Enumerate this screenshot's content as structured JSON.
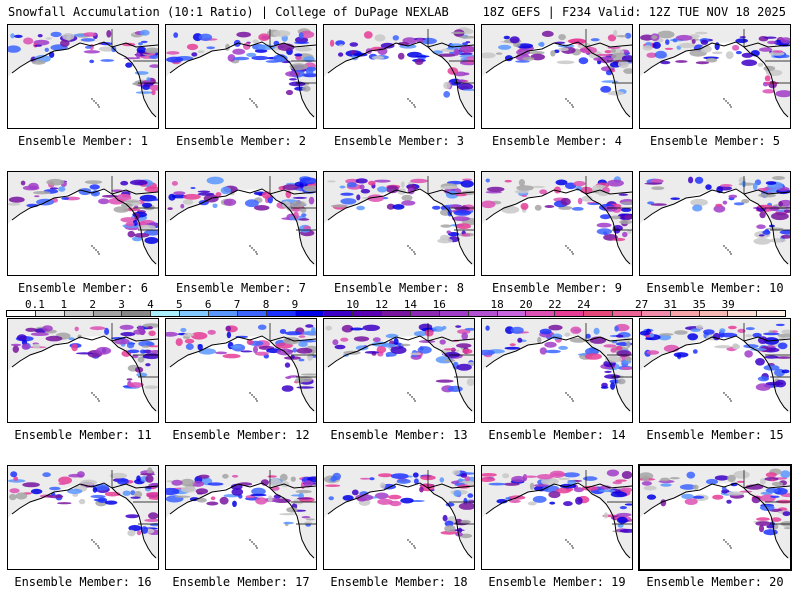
{
  "header": {
    "left": "Snowfall Accumulation (10:1 Ratio) | College of DuPage NEXLAB",
    "right": "18Z GEFS | F234 Valid: 12Z TUE NOV 18 2025"
  },
  "caption_prefix": "Ensemble Member: ",
  "members": [
    {
      "label": "Ensemble Member: 1"
    },
    {
      "label": "Ensemble Member: 2"
    },
    {
      "label": "Ensemble Member: 3"
    },
    {
      "label": "Ensemble Member: 4"
    },
    {
      "label": "Ensemble Member: 5"
    },
    {
      "label": "Ensemble Member: 6"
    },
    {
      "label": "Ensemble Member: 7"
    },
    {
      "label": "Ensemble Member: 8"
    },
    {
      "label": "Ensemble Member: 9"
    },
    {
      "label": "Ensemble Member: 10"
    },
    {
      "label": "Ensemble Member: 11"
    },
    {
      "label": "Ensemble Member: 12"
    },
    {
      "label": "Ensemble Member: 13"
    },
    {
      "label": "Ensemble Member: 14"
    },
    {
      "label": "Ensemble Member: 15"
    },
    {
      "label": "Ensemble Member: 16"
    },
    {
      "label": "Ensemble Member: 17"
    },
    {
      "label": "Ensemble Member: 18"
    },
    {
      "label": "Ensemble Member: 19"
    },
    {
      "label": "Ensemble Member: 20"
    }
  ],
  "legend": {
    "ticks": [
      "0.1",
      "1",
      "2",
      "3",
      "4",
      "5",
      "6",
      "7",
      "8",
      "9",
      "10",
      "12",
      "14",
      "16",
      "18",
      "20",
      "22",
      "24",
      "27",
      "31",
      "35",
      "39"
    ],
    "colors": [
      "#ffffff",
      "#e6e6e6",
      "#c8c8c8",
      "#a5a5a5",
      "#878787",
      "#aaf0ff",
      "#80c8ff",
      "#5a96ff",
      "#3c64ff",
      "#1e32ff",
      "#0000e6",
      "#3c00c8",
      "#5a00b4",
      "#7814a0",
      "#8c28b4",
      "#a03cc8",
      "#b450d2",
      "#c864dc",
      "#dc50b4",
      "#e63c96",
      "#e64678",
      "#eb6496",
      "#f08caa",
      "#f5a5a5",
      "#f5b9b4",
      "#fadcd2",
      "#fff0e6"
    ]
  }
}
